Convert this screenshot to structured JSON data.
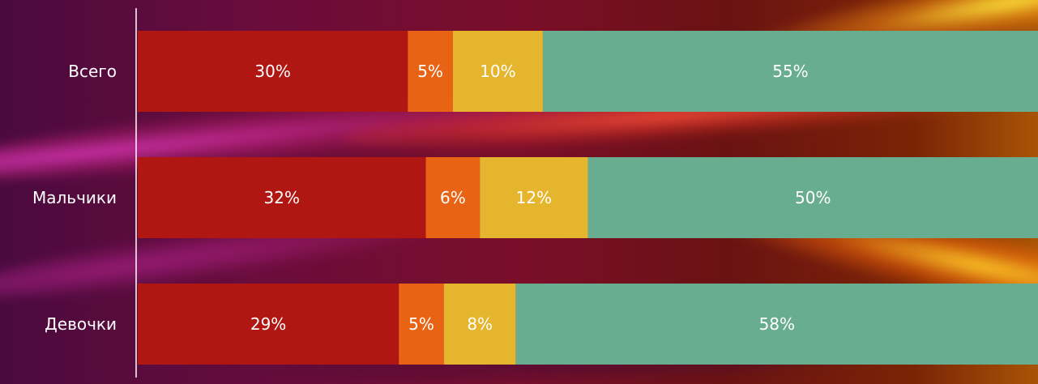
{
  "chart_data": {
    "type": "bar",
    "orientation": "horizontal",
    "stacked": true,
    "percent_stacked": true,
    "categories": [
      "Всего",
      "Мальчики",
      "Девочки"
    ],
    "series": [
      {
        "values": [
          30,
          32,
          29
        ],
        "labels": [
          "30%",
          "32%",
          "29%"
        ],
        "color": "#b01612"
      },
      {
        "values": [
          5,
          6,
          5
        ],
        "labels": [
          "5%",
          "6%",
          "5%"
        ],
        "color": "#e86414"
      },
      {
        "values": [
          10,
          12,
          8
        ],
        "labels": [
          "10%",
          "12%",
          "8%"
        ],
        "color": "#e5b52e"
      },
      {
        "values": [
          55,
          50,
          58
        ],
        "labels": [
          "55%",
          "50%",
          "58%"
        ],
        "color": "#68ad90"
      }
    ],
    "xlim": [
      0,
      100
    ],
    "grid": false,
    "legend": "none",
    "title": "",
    "xlabel": "",
    "ylabel": ""
  }
}
